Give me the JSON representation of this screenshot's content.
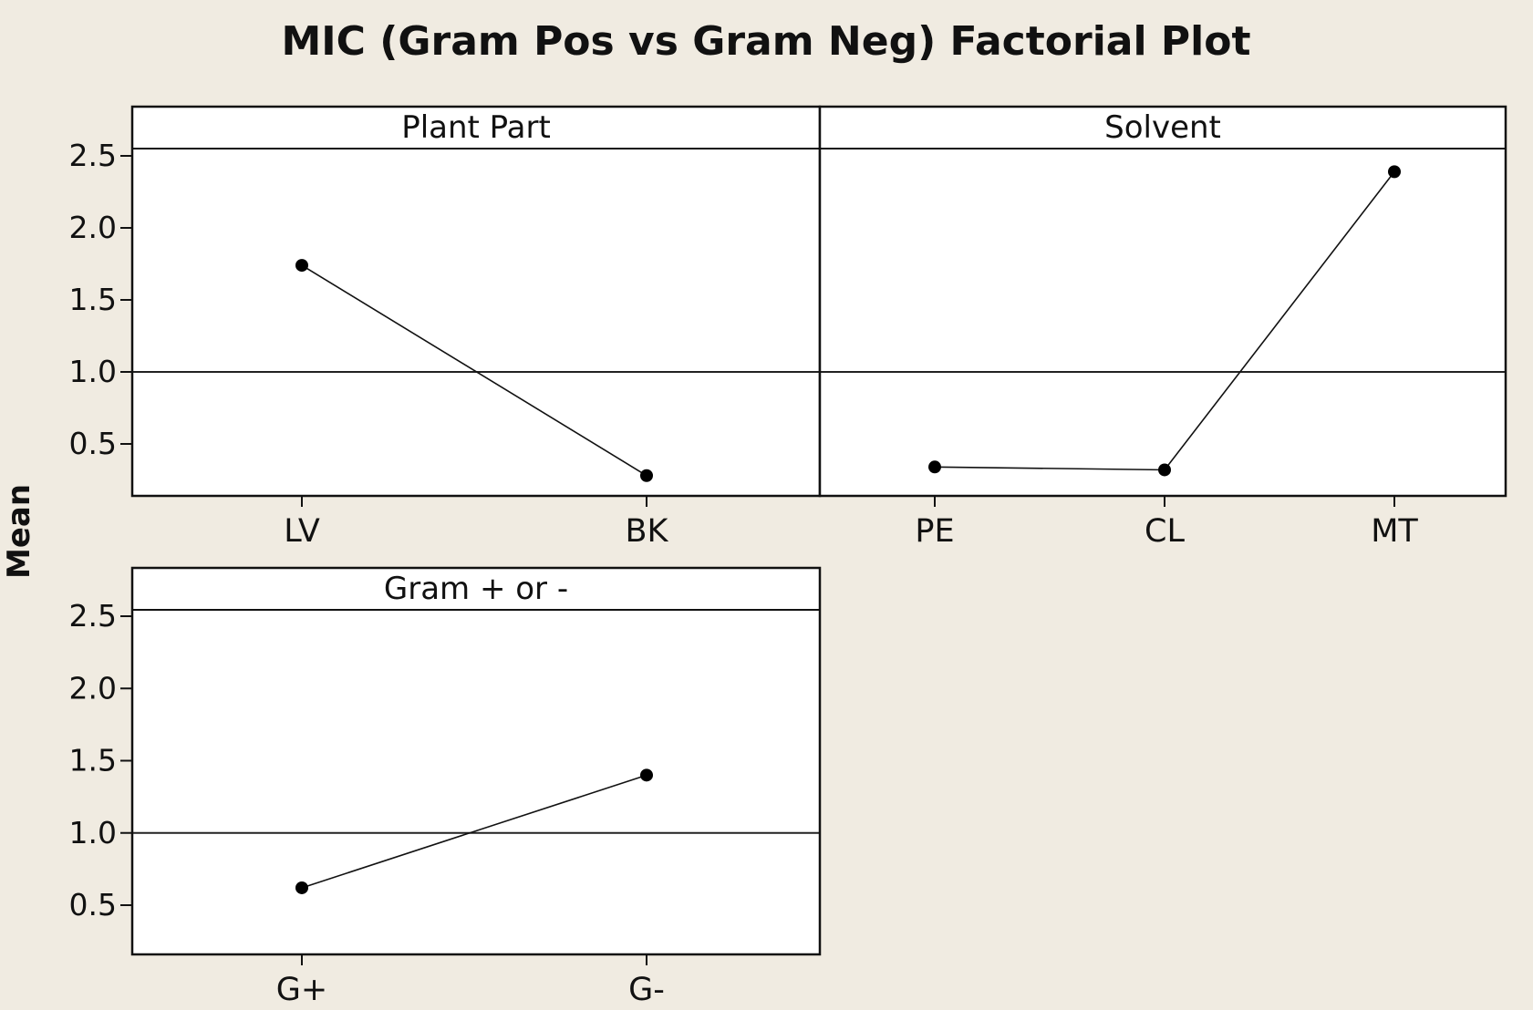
{
  "chart_data": {
    "type": "line",
    "title": "MIC (Gram Pos vs Gram Neg) Factorial Plot",
    "ylabel": "Mean",
    "ylim": [
      0.15,
      2.55
    ],
    "yticks": [
      "0.5",
      "1.0",
      "1.5",
      "2.0",
      "2.5"
    ],
    "reference_line": 1.0,
    "grid": false,
    "panels": [
      {
        "label": "Plant Part",
        "categories": [
          "LV",
          "BK"
        ],
        "values": [
          1.74,
          0.28
        ]
      },
      {
        "label": "Solvent",
        "categories": [
          "PE",
          "CL",
          "MT"
        ],
        "values": [
          0.34,
          0.32,
          2.39
        ]
      },
      {
        "label": "Gram + or -",
        "categories": [
          "G+",
          "G-"
        ],
        "values": [
          0.62,
          1.4
        ]
      }
    ],
    "colors": {
      "background": "#f0ebe1",
      "plot_background": "#ffffff",
      "line": "#111111",
      "marker": "#000000"
    }
  }
}
